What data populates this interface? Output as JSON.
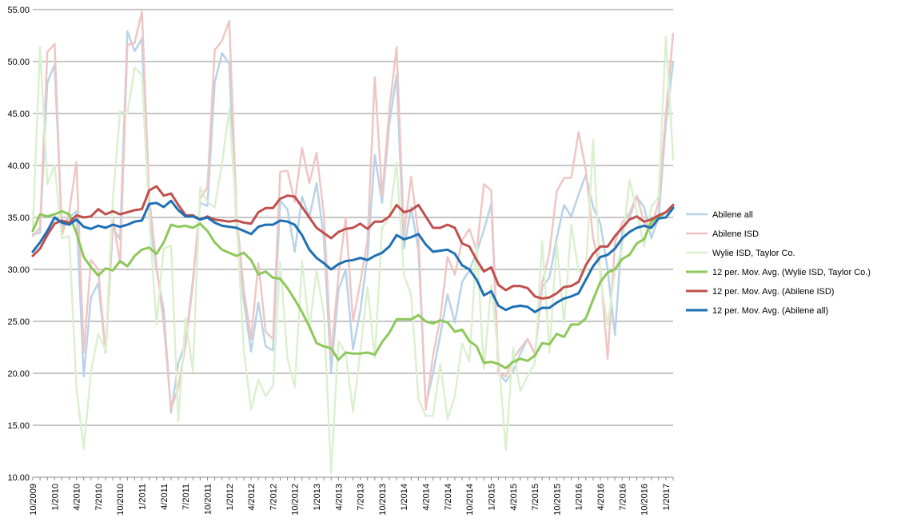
{
  "chart_data": {
    "type": "line",
    "title": "",
    "xlabel": "",
    "ylabel": "",
    "ylim": [
      10,
      55
    ],
    "y_ticks": [
      "10.00",
      "15.00",
      "20.00",
      "25.00",
      "30.00",
      "35.00",
      "40.00",
      "45.00",
      "50.00",
      "55.00"
    ],
    "x_tick_labels": [
      "10/2009",
      "1/2010",
      "4/2010",
      "7/2010",
      "10/2010",
      "1/2011",
      "4/2011",
      "7/2011",
      "10/2011",
      "1/2012",
      "4/2012",
      "7/2012",
      "10/2012",
      "1/2013",
      "4/2013",
      "7/2013",
      "10/2013",
      "1/2014",
      "4/2014",
      "7/2014",
      "10/2014",
      "1/2015",
      "4/2015",
      "7/2015",
      "10/2015",
      "1/2016",
      "4/2016",
      "7/2016",
      "10/2016",
      "1/2017"
    ],
    "grid": "horizontal",
    "legend_position": "right",
    "series": [
      {
        "name": "Abilene all",
        "color": "#b8d3e8",
        "width": 2.5,
        "values": [
          33.4,
          33.5,
          48.0,
          49.7,
          34.0,
          35.0,
          35.6,
          19.7,
          27.3,
          28.7,
          22.0,
          34.0,
          32.9,
          52.9,
          51.0,
          52.2,
          35.0,
          30.0,
          26.0,
          16.2,
          21.0,
          23.0,
          29.0,
          36.4,
          36.1,
          48.0,
          50.8,
          49.8,
          34.0,
          27.0,
          22.1,
          26.8,
          22.6,
          22.2,
          36.6,
          35.8,
          31.7,
          37.0,
          35.0,
          38.3,
          33.0,
          20.1,
          28.0,
          30.0,
          22.3,
          26.0,
          31.3,
          41.0,
          36.4,
          44.0,
          48.7,
          32.0,
          36.0,
          31.8,
          16.9,
          20.0,
          23.7,
          27.6,
          24.9,
          28.8,
          29.9,
          31.7,
          33.8,
          36.3,
          20.0,
          19.2,
          20.2,
          21.9,
          23.3,
          21.9,
          28.3,
          29.2,
          33.0,
          36.2,
          35.1,
          37.2,
          39.1,
          36.0,
          34.4,
          30.0,
          23.7,
          33.6,
          35.0,
          37.0,
          36.0,
          33.0,
          35.0,
          44.0,
          50.0
        ]
      },
      {
        "name": "Abilene ISD",
        "color": "#efc6c4",
        "width": 2.5,
        "values": [
          33.2,
          34.0,
          50.9,
          51.7,
          33.3,
          35.5,
          40.3,
          22.0,
          30.9,
          30.0,
          22.0,
          35.0,
          30.6,
          51.6,
          51.8,
          54.8,
          36.9,
          30.4,
          24.7,
          16.6,
          18.6,
          22.8,
          28.5,
          36.8,
          37.9,
          51.1,
          52.0,
          53.9,
          35.3,
          28.0,
          23.3,
          30.6,
          24.0,
          23.3,
          39.4,
          39.5,
          36.5,
          41.7,
          38.3,
          41.2,
          35.3,
          21.7,
          29.4,
          35.0,
          25.0,
          28.7,
          32.8,
          48.5,
          37.1,
          45.4,
          51.4,
          33.3,
          38.9,
          33.3,
          16.5,
          21.7,
          25.3,
          31.2,
          29.5,
          32.8,
          33.9,
          31.8,
          38.2,
          37.6,
          20.0,
          19.7,
          21.4,
          22.4,
          23.3,
          21.8,
          28.7,
          31.6,
          37.5,
          38.8,
          38.8,
          43.2,
          39.6,
          33.0,
          30.0,
          21.4,
          32.6,
          34.5,
          35.4,
          37.1,
          34.5,
          34.0,
          36.5,
          45.0,
          52.7
        ]
      },
      {
        "name": "Wylie ISD, Taylor Co.",
        "color": "#dcf0d0",
        "width": 2.5,
        "values": [
          34.0,
          51.4,
          38.2,
          40.0,
          33.0,
          33.2,
          18.6,
          12.7,
          20.2,
          23.8,
          22.2,
          36.7,
          45.2,
          45.0,
          49.4,
          48.7,
          35.0,
          24.7,
          32.0,
          32.3,
          15.4,
          25.3,
          20.2,
          37.9,
          36.5,
          36.0,
          40.2,
          45.4,
          35.0,
          22.2,
          16.5,
          19.4,
          17.8,
          18.8,
          30.7,
          21.4,
          18.7,
          30.8,
          24.3,
          29.9,
          25.7,
          10.4,
          23.1,
          22.0,
          16.3,
          22.0,
          28.3,
          21.5,
          34.0,
          35.0,
          40.3,
          29.5,
          27.5,
          17.5,
          15.9,
          15.9,
          20.9,
          15.6,
          17.8,
          22.9,
          21.1,
          32.4,
          20.4,
          28.5,
          21.7,
          12.6,
          22.5,
          18.3,
          19.7,
          21.0,
          32.8,
          22.0,
          32.5,
          24.8,
          34.3,
          29.8,
          29.9,
          42.5,
          29.1,
          24.6,
          29.8,
          32.0,
          38.6,
          35.6,
          32.2,
          36.0,
          37.0,
          52.4,
          40.6
        ]
      },
      {
        "name": "12 per. Mov. Avg. (Wylie ISD, Taylor Co.)",
        "color": "#8dc85a",
        "width": 3,
        "values": [
          33.7,
          35.3,
          35.1,
          35.3,
          35.6,
          35.3,
          33.5,
          31.2,
          30.2,
          29.4,
          30.1,
          29.9,
          30.8,
          30.3,
          31.3,
          31.9,
          32.1,
          31.5,
          32.6,
          34.3,
          34.1,
          34.2,
          34.0,
          34.4,
          33.7,
          32.6,
          31.9,
          31.6,
          31.3,
          31.6,
          30.9,
          29.5,
          29.8,
          29.2,
          29.1,
          28.2,
          27.1,
          25.9,
          24.5,
          22.9,
          22.6,
          22.4,
          21.3,
          22.0,
          21.9,
          21.9,
          22.0,
          21.8,
          23.0,
          23.9,
          25.2,
          25.2,
          25.2,
          25.6,
          25.0,
          24.8,
          25.1,
          24.9,
          24.0,
          24.2,
          23.1,
          22.6,
          21.0,
          21.1,
          20.9,
          20.5,
          21.1,
          21.4,
          21.2,
          21.7,
          22.9,
          22.8,
          23.8,
          23.5,
          24.7,
          24.7,
          25.3,
          27.1,
          28.8,
          29.7,
          30.0,
          31.0,
          31.4,
          32.5,
          32.9,
          34.6,
          35.0,
          35.5,
          36.0
        ]
      },
      {
        "name": "12 per. Mov. Avg. (Abilene ISD)",
        "color": "#c0504d",
        "width": 3,
        "values": [
          31.3,
          32.0,
          33.3,
          34.4,
          34.7,
          34.5,
          35.2,
          35.0,
          35.1,
          35.8,
          35.3,
          35.6,
          35.3,
          35.5,
          35.7,
          35.8,
          37.6,
          38.0,
          37.1,
          37.3,
          36.2,
          35.2,
          35.2,
          34.8,
          35.1,
          34.8,
          34.7,
          34.6,
          34.7,
          34.5,
          34.4,
          35.5,
          35.9,
          35.9,
          36.8,
          37.1,
          37.0,
          36.0,
          35.0,
          34.0,
          33.5,
          33.0,
          33.6,
          33.9,
          34.0,
          34.4,
          33.9,
          34.6,
          34.6,
          35.1,
          36.2,
          35.5,
          35.7,
          36.2,
          35.1,
          34.0,
          34.0,
          34.3,
          34.0,
          32.5,
          32.2,
          30.9,
          29.8,
          30.2,
          28.5,
          28.0,
          28.4,
          28.4,
          28.2,
          27.4,
          27.2,
          27.3,
          27.7,
          28.3,
          28.4,
          28.8,
          30.4,
          31.5,
          32.2,
          32.2,
          33.2,
          34.0,
          34.8,
          35.1,
          34.6,
          34.8,
          35.2,
          35.5,
          36.2
        ]
      },
      {
        "name": "12 per. Mov. Avg. (Abilene all)",
        "color": "#1f6fb5",
        "width": 3,
        "values": [
          31.7,
          32.6,
          33.7,
          35.0,
          34.5,
          34.3,
          34.8,
          34.1,
          33.9,
          34.2,
          34.0,
          34.3,
          34.1,
          34.3,
          34.6,
          34.7,
          36.3,
          36.4,
          36.0,
          36.6,
          35.7,
          35.1,
          35.1,
          34.8,
          35.0,
          34.5,
          34.2,
          34.1,
          34.0,
          33.7,
          33.4,
          34.1,
          34.3,
          34.3,
          34.7,
          34.6,
          34.3,
          33.3,
          31.9,
          31.1,
          30.6,
          30.0,
          30.5,
          30.8,
          30.9,
          31.1,
          30.9,
          31.3,
          31.6,
          32.2,
          33.3,
          32.9,
          33.1,
          33.4,
          32.4,
          31.7,
          31.8,
          31.9,
          31.5,
          30.4,
          30.0,
          29.0,
          27.5,
          27.9,
          26.5,
          26.1,
          26.4,
          26.5,
          26.4,
          25.9,
          26.3,
          26.3,
          26.8,
          27.2,
          27.4,
          27.7,
          29.0,
          30.3,
          31.2,
          31.4,
          32.0,
          33.0,
          33.6,
          34.0,
          34.2,
          34.0,
          34.9,
          35.0,
          35.9
        ]
      }
    ]
  }
}
